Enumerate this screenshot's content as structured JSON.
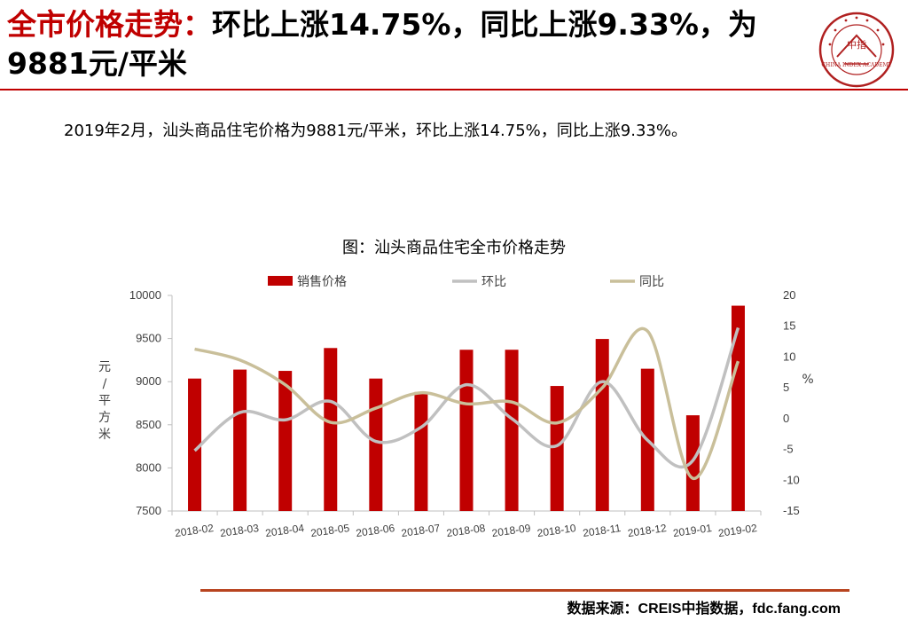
{
  "header": {
    "title_red": "全市价格走势：",
    "title_black": "环比上涨14.75%，同比上涨9.33%，为9881元/平米",
    "logo_text": "CHINA INDEX ACADEMY",
    "logo_center": "中指"
  },
  "summary": "2019年2月，汕头商品住宅价格为9881元/平米，环比上涨14.75%，同比上涨9.33%。",
  "footer": {
    "source": "数据来源：CREIS中指数据，fdc.fang.com"
  },
  "colors": {
    "accent": "#c00000",
    "bar": "#c00000",
    "mom_line": "#c0c0c0",
    "yoy_line": "#c9bf9a",
    "rule": "#b8441f"
  },
  "chart_data": {
    "type": "bar",
    "title": "图：汕头商品住宅全市价格走势",
    "categories": [
      "2018-02",
      "2018-03",
      "2018-04",
      "2018-05",
      "2018-06",
      "2018-07",
      "2018-08",
      "2018-09",
      "2018-10",
      "2018-11",
      "2018-12",
      "2019-01",
      "2019-02"
    ],
    "series": [
      {
        "name": "销售价格",
        "type": "bar",
        "axis": "left",
        "values": [
          9036,
          9140,
          9125,
          9390,
          9036,
          8880,
          9370,
          9370,
          8950,
          9495,
          9150,
          8610,
          9881
        ]
      },
      {
        "name": "环比",
        "type": "line",
        "axis": "right",
        "values": [
          -5.2,
          1.0,
          -0.2,
          2.8,
          -3.7,
          -1.4,
          5.5,
          0.0,
          -4.4,
          6.0,
          -3.5,
          -6.8,
          14.75
        ]
      },
      {
        "name": "同比",
        "type": "line",
        "axis": "right",
        "values": [
          11.3,
          9.5,
          5.5,
          -0.6,
          1.7,
          4.2,
          2.4,
          2.7,
          -0.7,
          5.0,
          14.2,
          -9.7,
          9.33
        ]
      }
    ],
    "y_left": {
      "label": "元/平方米",
      "min": 7500,
      "max": 10000,
      "ticks": [
        7500,
        8000,
        8500,
        9000,
        9500,
        10000
      ]
    },
    "y_right": {
      "label": "%",
      "min": -15,
      "max": 20,
      "ticks": [
        -15,
        -10,
        -5,
        0,
        5,
        10,
        15,
        20
      ]
    },
    "legend_position": "top",
    "grid": false
  }
}
